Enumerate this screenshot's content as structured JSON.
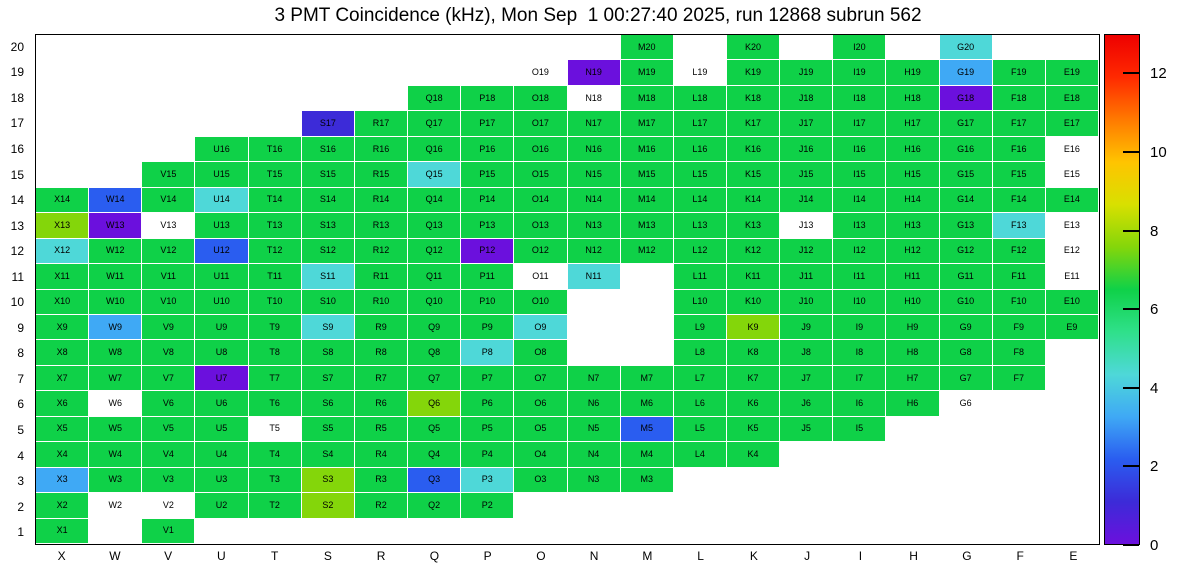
{
  "chart_data": {
    "type": "heatmap",
    "title": "3 PMT Coincidence (kHz), Mon Sep  1 00:27:40 2025, run 12868 subrun 562",
    "unit": "kHz",
    "x_labels": [
      "X",
      "W",
      "V",
      "U",
      "T",
      "S",
      "R",
      "Q",
      "P",
      "O",
      "N",
      "M",
      "L",
      "K",
      "J",
      "I",
      "H",
      "G",
      "F",
      "E"
    ],
    "y_labels": [
      "20",
      "19",
      "18",
      "17",
      "16",
      "15",
      "14",
      "13",
      "12",
      "11",
      "10",
      "9",
      "8",
      "7",
      "6",
      "5",
      "4",
      "3",
      "2",
      "1"
    ],
    "colorbar": {
      "min": 0,
      "max": 13,
      "tick_values": [
        0,
        2,
        4,
        6,
        8,
        10,
        12
      ],
      "gradient_stops": [
        "#6b10dd",
        "#3c2bd8",
        "#2a5df0",
        "#3fa9f5",
        "#4ed8d8",
        "#2fe08a",
        "#0fd148",
        "#84d60a",
        "#d8e000",
        "#ffc400",
        "#ff7a00",
        "#ff2a00",
        "#ee0000"
      ]
    },
    "palette": [
      {
        "max": 0.01,
        "color": "#ffffff"
      },
      {
        "max": 0.8,
        "color": "#6b10dd"
      },
      {
        "max": 1.6,
        "color": "#3c2bd8"
      },
      {
        "max": 2.4,
        "color": "#2a5df0"
      },
      {
        "max": 3.5,
        "color": "#3fa9f5"
      },
      {
        "max": 5.0,
        "color": "#4ed8d8"
      },
      {
        "max": 7.5,
        "color": "#0fd148"
      },
      {
        "max": 9.5,
        "color": "#84d60a"
      },
      {
        "max": 11.0,
        "color": "#ffc400"
      },
      {
        "max": 12.5,
        "color": "#ff7a00"
      },
      {
        "max": 99.0,
        "color": "#ee0000"
      }
    ],
    "cells": [
      [
        null,
        null,
        null,
        null,
        null,
        null,
        null,
        null,
        null,
        null,
        null,
        [
          "M20",
          6.5
        ],
        null,
        [
          "K20",
          6.5
        ],
        null,
        [
          "I20",
          6.5
        ],
        null,
        [
          "G20",
          4
        ],
        null,
        null
      ],
      [
        null,
        null,
        null,
        null,
        null,
        null,
        null,
        null,
        null,
        [
          "O19",
          0
        ],
        [
          "N19",
          0.4
        ],
        [
          "M19",
          6.5
        ],
        [
          "L19",
          0
        ],
        [
          "K19",
          6.5
        ],
        [
          "J19",
          6.5
        ],
        [
          "I19",
          6.5
        ],
        [
          "H19",
          6.5
        ],
        [
          "G19",
          3
        ],
        [
          "F19",
          6.5
        ],
        [
          "E19",
          6.5
        ]
      ],
      [
        null,
        null,
        null,
        null,
        null,
        null,
        null,
        [
          "Q18",
          6.5
        ],
        [
          "P18",
          6.5
        ],
        [
          "O18",
          6.5
        ],
        [
          "N18",
          0
        ],
        [
          "M18",
          6.5
        ],
        [
          "L18",
          6.5
        ],
        [
          "K18",
          6.5
        ],
        [
          "J18",
          6.5
        ],
        [
          "I18",
          6.5
        ],
        [
          "H18",
          6.5
        ],
        [
          "G18",
          0.4
        ],
        [
          "F18",
          6.5
        ],
        [
          "E18",
          6.5
        ]
      ],
      [
        null,
        null,
        null,
        null,
        null,
        [
          "S17",
          1.2
        ],
        [
          "R17",
          6.5
        ],
        [
          "Q17",
          6.5
        ],
        [
          "P17",
          6.5
        ],
        [
          "O17",
          6.5
        ],
        [
          "N17",
          6.5
        ],
        [
          "M17",
          6.5
        ],
        [
          "L17",
          6.5
        ],
        [
          "K17",
          6.5
        ],
        [
          "J17",
          6.5
        ],
        [
          "I17",
          6.5
        ],
        [
          "H17",
          6.5
        ],
        [
          "G17",
          6.5
        ],
        [
          "F17",
          6.5
        ],
        [
          "E17",
          6.5
        ]
      ],
      [
        null,
        null,
        null,
        [
          "U16",
          6.5
        ],
        [
          "T16",
          6.5
        ],
        [
          "S16",
          6.5
        ],
        [
          "R16",
          6.5
        ],
        [
          "Q16",
          6.5
        ],
        [
          "P16",
          6.5
        ],
        [
          "O16",
          6.5
        ],
        [
          "N16",
          6.5
        ],
        [
          "M16",
          6.5
        ],
        [
          "L16",
          6.5
        ],
        [
          "K16",
          6.5
        ],
        [
          "J16",
          6.5
        ],
        [
          "I16",
          6.5
        ],
        [
          "H16",
          6.5
        ],
        [
          "G16",
          6.5
        ],
        [
          "F16",
          6.5
        ],
        [
          "E16",
          0
        ]
      ],
      [
        null,
        null,
        [
          "V15",
          6.5
        ],
        [
          "U15",
          6.5
        ],
        [
          "T15",
          6.5
        ],
        [
          "S15",
          6.5
        ],
        [
          "R15",
          6.5
        ],
        [
          "Q15",
          4
        ],
        [
          "P15",
          6.5
        ],
        [
          "O15",
          6.5
        ],
        [
          "N15",
          6.5
        ],
        [
          "M15",
          6.5
        ],
        [
          "L15",
          6.5
        ],
        [
          "K15",
          6.5
        ],
        [
          "J15",
          6.5
        ],
        [
          "I15",
          6.5
        ],
        [
          "H15",
          6.5
        ],
        [
          "G15",
          6.5
        ],
        [
          "F15",
          6.5
        ],
        [
          "E15",
          0
        ]
      ],
      [
        [
          "X14",
          6.5
        ],
        [
          "W14",
          2
        ],
        [
          "V14",
          6.5
        ],
        [
          "U14",
          4
        ],
        [
          "T14",
          6.5
        ],
        [
          "S14",
          6.5
        ],
        [
          "R14",
          6.5
        ],
        [
          "Q14",
          6.5
        ],
        [
          "P14",
          6.5
        ],
        [
          "O14",
          6.5
        ],
        [
          "N14",
          6.5
        ],
        [
          "M14",
          6.5
        ],
        [
          "L14",
          6.5
        ],
        [
          "K14",
          6.5
        ],
        [
          "J14",
          6.5
        ],
        [
          "I14",
          6.5
        ],
        [
          "H14",
          6.5
        ],
        [
          "G14",
          6.5
        ],
        [
          "F14",
          6.5
        ],
        [
          "E14",
          6.5
        ]
      ],
      [
        [
          "X13",
          8
        ],
        [
          "W13",
          0.4
        ],
        [
          "V13",
          0
        ],
        [
          "U13",
          6.5
        ],
        [
          "T13",
          6.5
        ],
        [
          "S13",
          6.5
        ],
        [
          "R13",
          6.5
        ],
        [
          "Q13",
          6.5
        ],
        [
          "P13",
          6.5
        ],
        [
          "O13",
          6.5
        ],
        [
          "N13",
          6.5
        ],
        [
          "M13",
          6.5
        ],
        [
          "L13",
          6.5
        ],
        [
          "K13",
          6.5
        ],
        [
          "J13",
          0
        ],
        [
          "I13",
          6.5
        ],
        [
          "H13",
          6.5
        ],
        [
          "G13",
          6.5
        ],
        [
          "F13",
          4
        ],
        [
          "E13",
          0
        ]
      ],
      [
        [
          "X12",
          4
        ],
        [
          "W12",
          6.5
        ],
        [
          "V12",
          6.5
        ],
        [
          "U12",
          2
        ],
        [
          "T12",
          6.5
        ],
        [
          "S12",
          6.5
        ],
        [
          "R12",
          6.5
        ],
        [
          "Q12",
          6.5
        ],
        [
          "P12",
          0.4
        ],
        [
          "O12",
          6.5
        ],
        [
          "N12",
          6.5
        ],
        [
          "M12",
          6.5
        ],
        [
          "L12",
          6.5
        ],
        [
          "K12",
          6.5
        ],
        [
          "J12",
          6.5
        ],
        [
          "I12",
          6.5
        ],
        [
          "H12",
          6.5
        ],
        [
          "G12",
          6.5
        ],
        [
          "F12",
          6.5
        ],
        [
          "E12",
          0
        ]
      ],
      [
        [
          "X11",
          6.5
        ],
        [
          "W11",
          6.5
        ],
        [
          "V11",
          6.5
        ],
        [
          "U11",
          6.5
        ],
        [
          "T11",
          6.5
        ],
        [
          "S11",
          4
        ],
        [
          "R11",
          6.5
        ],
        [
          "Q11",
          6.5
        ],
        [
          "P11",
          6.5
        ],
        [
          "O11",
          0
        ],
        [
          "N11",
          4
        ],
        null,
        [
          "L11",
          6.5
        ],
        [
          "K11",
          6.5
        ],
        [
          "J11",
          6.5
        ],
        [
          "I11",
          6.5
        ],
        [
          "H11",
          6.5
        ],
        [
          "G11",
          6.5
        ],
        [
          "F11",
          6.5
        ],
        [
          "E11",
          0
        ]
      ],
      [
        [
          "X10",
          6.5
        ],
        [
          "W10",
          6.5
        ],
        [
          "V10",
          6.5
        ],
        [
          "U10",
          6.5
        ],
        [
          "T10",
          6.5
        ],
        [
          "S10",
          6.5
        ],
        [
          "R10",
          6.5
        ],
        [
          "Q10",
          6.5
        ],
        [
          "P10",
          6.5
        ],
        [
          "O10",
          6.5
        ],
        null,
        null,
        [
          "L10",
          6.5
        ],
        [
          "K10",
          6.5
        ],
        [
          "J10",
          6.5
        ],
        [
          "I10",
          6.5
        ],
        [
          "H10",
          6.5
        ],
        [
          "G10",
          6.5
        ],
        [
          "F10",
          6.5
        ],
        [
          "E10",
          6.5
        ]
      ],
      [
        [
          "X9",
          6.5
        ],
        [
          "W9",
          3
        ],
        [
          "V9",
          6.5
        ],
        [
          "U9",
          6.5
        ],
        [
          "T9",
          6.5
        ],
        [
          "S9",
          4
        ],
        [
          "R9",
          6.5
        ],
        [
          "Q9",
          6.5
        ],
        [
          "P9",
          6.5
        ],
        [
          "O9",
          4
        ],
        null,
        null,
        [
          "L9",
          6.5
        ],
        [
          "K9",
          8
        ],
        [
          "J9",
          6.5
        ],
        [
          "I9",
          6.5
        ],
        [
          "H9",
          6.5
        ],
        [
          "G9",
          6.5
        ],
        [
          "F9",
          6.5
        ],
        [
          "E9",
          6.5
        ]
      ],
      [
        [
          "X8",
          6.5
        ],
        [
          "W8",
          6.5
        ],
        [
          "V8",
          6.5
        ],
        [
          "U8",
          6.5
        ],
        [
          "T8",
          6.5
        ],
        [
          "S8",
          6.5
        ],
        [
          "R8",
          6.5
        ],
        [
          "Q8",
          6.5
        ],
        [
          "P8",
          4
        ],
        [
          "O8",
          6.5
        ],
        null,
        null,
        [
          "L8",
          6.5
        ],
        [
          "K8",
          6.5
        ],
        [
          "J8",
          6.5
        ],
        [
          "I8",
          6.5
        ],
        [
          "H8",
          6.5
        ],
        [
          "G8",
          6.5
        ],
        [
          "F8",
          6.5
        ],
        null
      ],
      [
        [
          "X7",
          6.5
        ],
        [
          "W7",
          6.5
        ],
        [
          "V7",
          6.5
        ],
        [
          "U7",
          0.4
        ],
        [
          "T7",
          6.5
        ],
        [
          "S7",
          6.5
        ],
        [
          "R7",
          6.5
        ],
        [
          "Q7",
          6.5
        ],
        [
          "P7",
          6.5
        ],
        [
          "O7",
          6.5
        ],
        [
          "N7",
          6.5
        ],
        [
          "M7",
          6.5
        ],
        [
          "L7",
          6.5
        ],
        [
          "K7",
          6.5
        ],
        [
          "J7",
          6.5
        ],
        [
          "I7",
          6.5
        ],
        [
          "H7",
          6.5
        ],
        [
          "G7",
          6.5
        ],
        [
          "F7",
          6.5
        ],
        null
      ],
      [
        [
          "X6",
          6.5
        ],
        [
          "W6",
          0
        ],
        [
          "V6",
          6.5
        ],
        [
          "U6",
          6.5
        ],
        [
          "T6",
          6.5
        ],
        [
          "S6",
          6.5
        ],
        [
          "R6",
          6.5
        ],
        [
          "Q6",
          8
        ],
        [
          "P6",
          6.5
        ],
        [
          "O6",
          6.5
        ],
        [
          "N6",
          6.5
        ],
        [
          "M6",
          6.5
        ],
        [
          "L6",
          6.5
        ],
        [
          "K6",
          6.5
        ],
        [
          "J6",
          6.5
        ],
        [
          "I6",
          6.5
        ],
        [
          "H6",
          6.5
        ],
        [
          "G6",
          0
        ],
        null,
        null
      ],
      [
        [
          "X5",
          6.5
        ],
        [
          "W5",
          6.5
        ],
        [
          "V5",
          6.5
        ],
        [
          "U5",
          6.5
        ],
        [
          "T5",
          0
        ],
        [
          "S5",
          6.5
        ],
        [
          "R5",
          6.5
        ],
        [
          "Q5",
          6.5
        ],
        [
          "P5",
          6.5
        ],
        [
          "O5",
          6.5
        ],
        [
          "N5",
          6.5
        ],
        [
          "M5",
          2
        ],
        [
          "L5",
          6.5
        ],
        [
          "K5",
          6.5
        ],
        [
          "J5",
          6.5
        ],
        [
          "I5",
          6.5
        ],
        null,
        null,
        null,
        null
      ],
      [
        [
          "X4",
          6.5
        ],
        [
          "W4",
          6.5
        ],
        [
          "V4",
          6.5
        ],
        [
          "U4",
          6.5
        ],
        [
          "T4",
          6.5
        ],
        [
          "S4",
          6.5
        ],
        [
          "R4",
          6.5
        ],
        [
          "Q4",
          6.5
        ],
        [
          "P4",
          6.5
        ],
        [
          "O4",
          6.5
        ],
        [
          "N4",
          6.5
        ],
        [
          "M4",
          6.5
        ],
        [
          "L4",
          6.5
        ],
        [
          "K4",
          6.5
        ],
        null,
        null,
        null,
        null,
        null,
        null
      ],
      [
        [
          "X3",
          3
        ],
        [
          "W3",
          6.5
        ],
        [
          "V3",
          6.5
        ],
        [
          "U3",
          6.5
        ],
        [
          "T3",
          6.5
        ],
        [
          "S3",
          8
        ],
        [
          "R3",
          6.5
        ],
        [
          "Q3",
          2.2
        ],
        [
          "P3",
          4
        ],
        [
          "O3",
          6.5
        ],
        [
          "N3",
          6.5
        ],
        [
          "M3",
          6.5
        ],
        null,
        null,
        null,
        null,
        null,
        null,
        null,
        null
      ],
      [
        [
          "X2",
          6.5
        ],
        [
          "W2",
          0
        ],
        [
          "V2",
          0
        ],
        [
          "U2",
          6.5
        ],
        [
          "T2",
          6.5
        ],
        [
          "S2",
          8
        ],
        [
          "R2",
          6.5
        ],
        [
          "Q2",
          6.5
        ],
        [
          "P2",
          6.5
        ],
        null,
        null,
        null,
        null,
        null,
        null,
        null,
        null,
        null,
        null,
        null
      ],
      [
        [
          "X1",
          6.5
        ],
        null,
        [
          "V1",
          6.5
        ],
        null,
        null,
        null,
        null,
        null,
        null,
        null,
        null,
        null,
        null,
        null,
        null,
        null,
        null,
        null,
        null,
        null
      ]
    ]
  }
}
